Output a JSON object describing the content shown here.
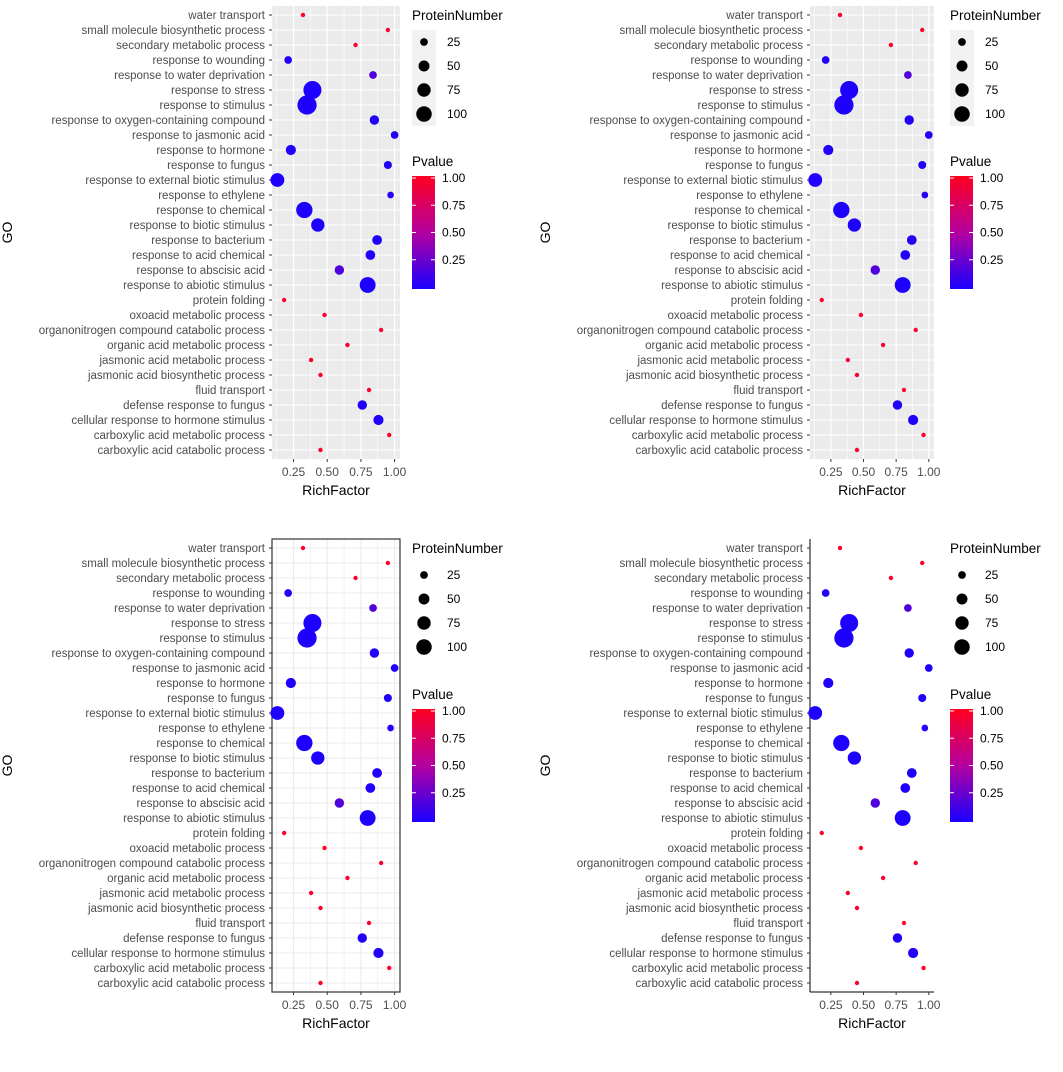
{
  "chart_data": [
    {
      "type": "scatter",
      "theme": "gray",
      "xlabel": "RichFactor",
      "ylabel": "GO",
      "xlim": [
        0.09,
        1.04
      ],
      "xticks": [
        "0.25",
        "0.50",
        "0.75",
        "1.00"
      ],
      "grid": true,
      "size_legend": {
        "title": "ProteinNumber",
        "values": [
          "25",
          "50",
          "75",
          "100"
        ]
      },
      "color_legend": {
        "title": "Pvalue",
        "ticks": [
          "1.00",
          "0.75",
          "0.50",
          "0.25"
        ],
        "low_color": "#1a00ff",
        "high_color": "#ff0020"
      }
    },
    {
      "type": "scatter",
      "theme": "gray",
      "xlabel": "RichFactor",
      "ylabel": "GO",
      "xlim": [
        0.09,
        1.04
      ],
      "xticks": [
        "0.25",
        "0.50",
        "0.75",
        "1.00"
      ],
      "grid": true,
      "size_legend": {
        "title": "ProteinNumber",
        "values": [
          "25",
          "50",
          "75",
          "100"
        ]
      },
      "color_legend": {
        "title": "Pvalue",
        "ticks": [
          "1.00",
          "0.75",
          "0.50",
          "0.25"
        ],
        "low_color": "#1a00ff",
        "high_color": "#ff0020"
      }
    },
    {
      "type": "scatter",
      "theme": "bw",
      "xlabel": "RichFactor",
      "ylabel": "GO",
      "xlim": [
        0.09,
        1.04
      ],
      "xticks": [
        "0.25",
        "0.50",
        "0.75",
        "1.00"
      ],
      "grid": true,
      "size_legend": {
        "title": "ProteinNumber",
        "values": [
          "25",
          "50",
          "75",
          "100"
        ]
      },
      "color_legend": {
        "title": "Pvalue",
        "ticks": [
          "1.00",
          "0.75",
          "0.50",
          "0.25"
        ],
        "low_color": "#1a00ff",
        "high_color": "#ff0020"
      }
    },
    {
      "type": "scatter",
      "theme": "classic",
      "xlabel": "RichFactor",
      "ylabel": "GO",
      "xlim": [
        0.09,
        1.04
      ],
      "xticks": [
        "0.25",
        "0.50",
        "0.75",
        "1.00"
      ],
      "grid": false,
      "size_legend": {
        "title": "ProteinNumber",
        "values": [
          "25",
          "50",
          "75",
          "100"
        ]
      },
      "color_legend": {
        "title": "Pvalue",
        "ticks": [
          "1.00",
          "0.75",
          "0.50",
          "0.25"
        ],
        "low_color": "#1a00ff",
        "high_color": "#ff0020"
      }
    }
  ],
  "go_terms": [
    {
      "term": "water transport",
      "rich": 0.32,
      "protein": 3,
      "pvalue": 0.98
    },
    {
      "term": "small molecule biosynthetic process",
      "rich": 0.95,
      "protein": 3,
      "pvalue": 0.97
    },
    {
      "term": "secondary metabolic process",
      "rich": 0.71,
      "protein": 4,
      "pvalue": 0.97
    },
    {
      "term": "response to wounding",
      "rich": 0.21,
      "protein": 20,
      "pvalue": 0.02
    },
    {
      "term": "response to water deprivation",
      "rich": 0.84,
      "protein": 20,
      "pvalue": 0.18
    },
    {
      "term": "response to stress",
      "rich": 0.39,
      "protein": 110,
      "pvalue": 0.01
    },
    {
      "term": "response to stimulus",
      "rich": 0.35,
      "protein": 125,
      "pvalue": 0.01
    },
    {
      "term": "response to oxygen-containing compound",
      "rich": 0.85,
      "protein": 30,
      "pvalue": 0.02
    },
    {
      "term": "response to jasmonic acid",
      "rich": 1.0,
      "protein": 20,
      "pvalue": 0.02
    },
    {
      "term": "response to hormone",
      "rich": 0.23,
      "protein": 35,
      "pvalue": 0.02
    },
    {
      "term": "response to fungus",
      "rich": 0.95,
      "protein": 22,
      "pvalue": 0.02
    },
    {
      "term": "response to external biotic stimulus",
      "rich": 0.13,
      "protein": 65,
      "pvalue": 0.01
    },
    {
      "term": "response to ethylene",
      "rich": 0.97,
      "protein": 15,
      "pvalue": 0.03
    },
    {
      "term": "response to chemical",
      "rich": 0.33,
      "protein": 90,
      "pvalue": 0.01
    },
    {
      "term": "response to biotic stimulus",
      "rich": 0.43,
      "protein": 60,
      "pvalue": 0.01
    },
    {
      "term": "response to bacterium",
      "rich": 0.87,
      "protein": 32,
      "pvalue": 0.02
    },
    {
      "term": "response to acid chemical",
      "rich": 0.82,
      "protein": 32,
      "pvalue": 0.02
    },
    {
      "term": "response to abscisic acid",
      "rich": 0.59,
      "protein": 30,
      "pvalue": 0.17
    },
    {
      "term": "response to abiotic stimulus",
      "rich": 0.8,
      "protein": 85,
      "pvalue": 0.01
    },
    {
      "term": "protein folding",
      "rich": 0.18,
      "protein": 5,
      "pvalue": 0.97
    },
    {
      "term": "oxoacid metabolic process",
      "rich": 0.48,
      "protein": 5,
      "pvalue": 0.97
    },
    {
      "term": "organonitrogen compound catabolic process",
      "rich": 0.9,
      "protein": 5,
      "pvalue": 0.97
    },
    {
      "term": "organic acid metabolic process",
      "rich": 0.65,
      "protein": 5,
      "pvalue": 0.97
    },
    {
      "term": "jasmonic acid metabolic process",
      "rich": 0.38,
      "protein": 5,
      "pvalue": 0.97
    },
    {
      "term": "jasmonic acid biosynthetic process",
      "rich": 0.45,
      "protein": 5,
      "pvalue": 0.97
    },
    {
      "term": "fluid transport",
      "rich": 0.81,
      "protein": 5,
      "pvalue": 0.97
    },
    {
      "term": "defense response to fungus",
      "rich": 0.76,
      "protein": 30,
      "pvalue": 0.02
    },
    {
      "term": "cellular response to hormone stimulus",
      "rich": 0.88,
      "protein": 35,
      "pvalue": 0.02
    },
    {
      "term": "carboxylic acid metabolic process",
      "rich": 0.96,
      "protein": 5,
      "pvalue": 0.97
    },
    {
      "term": "carboxylic acid catabolic process",
      "rich": 0.45,
      "protein": 4,
      "pvalue": 0.97
    }
  ]
}
